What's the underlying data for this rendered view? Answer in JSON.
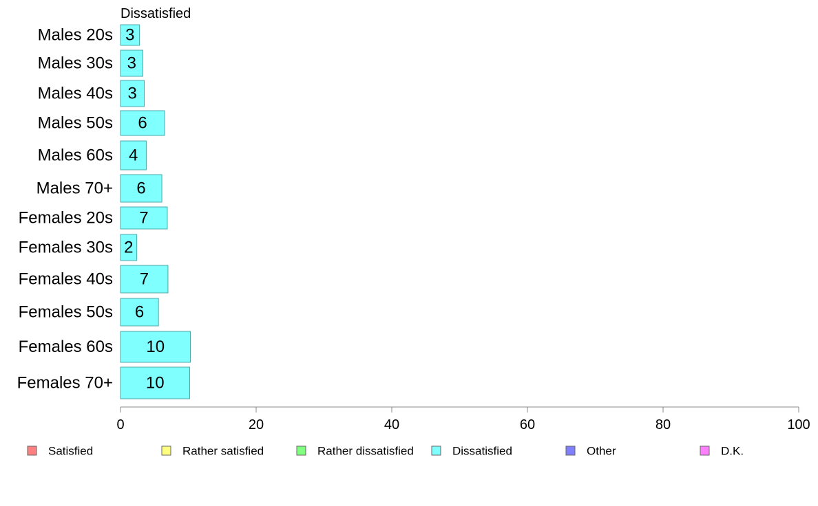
{
  "chart_data": {
    "type": "bar",
    "orientation": "horizontal",
    "title": "Dissatisfied",
    "categories": [
      "Males 20s",
      "Males 30s",
      "Males 40s",
      "Males 50s",
      "Males 60s",
      "Males 70+",
      "Females 20s",
      "Females 30s",
      "Females 40s",
      "Females 50s",
      "Females 60s",
      "Females 70+"
    ],
    "values": [
      2.8,
      3.3,
      3.5,
      6.5,
      3.8,
      6.1,
      6.9,
      2.4,
      7.0,
      5.6,
      10.3,
      10.2
    ],
    "value_labels": [
      "3",
      "3",
      "3",
      "6",
      "4",
      "6",
      "7",
      "2",
      "7",
      "6",
      "10",
      "10"
    ],
    "xlim": [
      0,
      100
    ],
    "xticks": [
      0,
      20,
      40,
      60,
      80,
      100
    ],
    "xtick_labels": [
      "0",
      "20",
      "40",
      "60",
      "80",
      "100"
    ],
    "xlabel": "",
    "ylabel": "",
    "grid": false,
    "legend_position": "bottom",
    "legend": [
      {
        "name": "Satisfied",
        "color": "#ff8080"
      },
      {
        "name": "Rather satisfied",
        "color": "#ffff80"
      },
      {
        "name": "Rather dissatisfied",
        "color": "#80ff80"
      },
      {
        "name": "Dissatisfied",
        "color": "#80ffff"
      },
      {
        "name": "Other",
        "color": "#8080ff"
      },
      {
        "name": "D.K.",
        "color": "#ff80ff"
      }
    ],
    "bar_color": "#80ffff",
    "bar_stroke": "#4aa8a8"
  }
}
